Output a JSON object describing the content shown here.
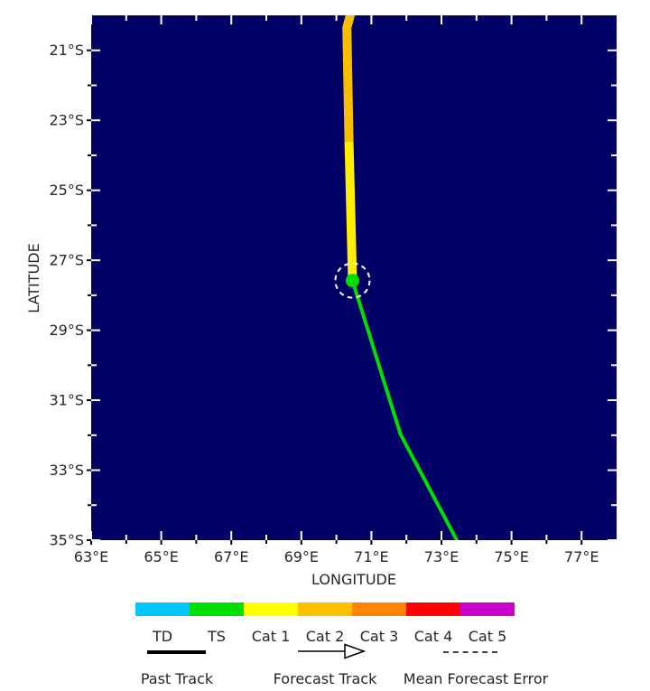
{
  "colors": {
    "page_background": "#FFFFFF",
    "map_background": "#000066",
    "tick_inside": "#FFFFFF",
    "tick_outside": "#000000",
    "text": "#262626",
    "error_circle": "#FFFFFF"
  },
  "chart_data": {
    "type": "line",
    "title": "",
    "xlabel": "LONGITUDE",
    "ylabel": "LATITUDE",
    "xlim": [
      63,
      78
    ],
    "ylim": [
      20,
      35
    ],
    "x_major_ticks": [
      63,
      65,
      67,
      69,
      71,
      73,
      75,
      77
    ],
    "x_minor_ticks": [
      64,
      66,
      68,
      70,
      72,
      74,
      76
    ],
    "y_major_ticks": [
      21,
      23,
      25,
      27,
      29,
      31,
      33,
      35
    ],
    "y_minor_ticks": [
      22,
      24,
      26,
      28,
      30,
      32,
      34
    ],
    "x_tick_labels": [
      "63°E",
      "65°E",
      "67°E",
      "69°E",
      "71°E",
      "73°E",
      "75°E",
      "77°E"
    ],
    "y_tick_labels": [
      "21°S",
      "23°S",
      "25°S",
      "27°S",
      "29°S",
      "31°S",
      "33°S",
      "35°S"
    ],
    "series": [
      {
        "name": "past-track-cat2",
        "kind": "past-track",
        "intensity": "Cat 2",
        "color": "#FABE00",
        "width": 10,
        "points": [
          [
            70.45,
            19.8
          ],
          [
            70.3,
            20.35
          ],
          [
            70.36,
            23.6
          ]
        ]
      },
      {
        "name": "past-track-cat1",
        "kind": "past-track",
        "intensity": "Cat 1",
        "color": "#FFED00",
        "width": 10,
        "points": [
          [
            70.36,
            23.6
          ],
          [
            70.46,
            27.58
          ]
        ]
      },
      {
        "name": "forecast-track",
        "kind": "forecast-track",
        "intensity": "TS",
        "color": "#00E000",
        "width": 4,
        "points": [
          [
            70.46,
            27.58
          ],
          [
            71.83,
            31.97
          ],
          [
            73.65,
            35.4
          ]
        ]
      }
    ],
    "current_position": {
      "lon": 70.46,
      "lat": 27.58,
      "marker_color": "#00E000",
      "marker_radius": 7.5,
      "error_circle_radius": 19
    }
  },
  "legend": {
    "categories": [
      {
        "label": "TD",
        "color": "#00C8FF"
      },
      {
        "label": "TS",
        "color": "#00E000"
      },
      {
        "label": "Cat 1",
        "color": "#FFFF00"
      },
      {
        "label": "Cat 2",
        "color": "#FFC000"
      },
      {
        "label": "Cat 3",
        "color": "#FF8400"
      },
      {
        "label": "Cat 4",
        "color": "#FF0000"
      },
      {
        "label": "Cat 5",
        "color": "#CC00CC"
      }
    ],
    "past_track_label": "Past Track",
    "forecast_track_label": "Forecast Track",
    "mean_forecast_error_label": "Mean Forecast Error"
  }
}
